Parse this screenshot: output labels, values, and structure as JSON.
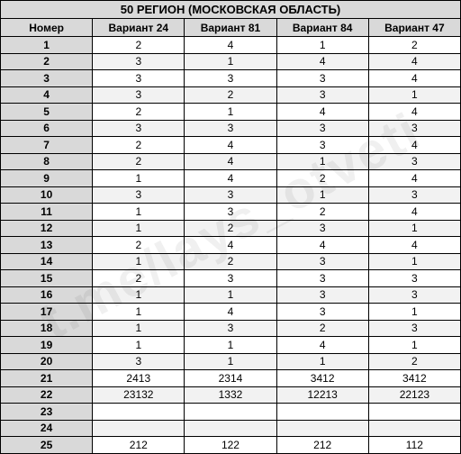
{
  "title": "50 РЕГИОН (МОСКОВСКАЯ ОБЛАСТЬ)",
  "watermark": "t.me/lays_otveti",
  "num_header": "Номер",
  "columns": [
    "Вариант 24",
    "Вариант 81",
    "Вариант 84",
    "Вариант 47"
  ],
  "rows": [
    {
      "n": "1",
      "v": [
        "2",
        "4",
        "1",
        "2"
      ]
    },
    {
      "n": "2",
      "v": [
        "3",
        "1",
        "4",
        "4"
      ]
    },
    {
      "n": "3",
      "v": [
        "3",
        "3",
        "3",
        "4"
      ]
    },
    {
      "n": "4",
      "v": [
        "3",
        "2",
        "3",
        "1"
      ]
    },
    {
      "n": "5",
      "v": [
        "2",
        "1",
        "4",
        "4"
      ]
    },
    {
      "n": "6",
      "v": [
        "3",
        "3",
        "3",
        "3"
      ]
    },
    {
      "n": "7",
      "v": [
        "2",
        "4",
        "3",
        "4"
      ]
    },
    {
      "n": "8",
      "v": [
        "2",
        "4",
        "1",
        "3"
      ]
    },
    {
      "n": "9",
      "v": [
        "1",
        "4",
        "2",
        "4"
      ]
    },
    {
      "n": "10",
      "v": [
        "3",
        "3",
        "1",
        "3"
      ]
    },
    {
      "n": "11",
      "v": [
        "1",
        "3",
        "2",
        "4"
      ]
    },
    {
      "n": "12",
      "v": [
        "1",
        "2",
        "3",
        "1"
      ]
    },
    {
      "n": "13",
      "v": [
        "2",
        "4",
        "4",
        "4"
      ]
    },
    {
      "n": "14",
      "v": [
        "1",
        "2",
        "3",
        "1"
      ]
    },
    {
      "n": "15",
      "v": [
        "2",
        "3",
        "3",
        "3"
      ]
    },
    {
      "n": "16",
      "v": [
        "1",
        "1",
        "3",
        "3"
      ]
    },
    {
      "n": "17",
      "v": [
        "1",
        "4",
        "3",
        "1"
      ]
    },
    {
      "n": "18",
      "v": [
        "1",
        "3",
        "2",
        "3"
      ]
    },
    {
      "n": "19",
      "v": [
        "1",
        "1",
        "4",
        "1"
      ]
    },
    {
      "n": "20",
      "v": [
        "3",
        "1",
        "1",
        "2"
      ]
    },
    {
      "n": "21",
      "v": [
        "2413",
        "2314",
        "3412",
        "3412"
      ]
    },
    {
      "n": "22",
      "v": [
        "23132",
        "1332",
        "12213",
        "22123"
      ]
    },
    {
      "n": "23",
      "v": [
        "",
        "",
        "",
        ""
      ]
    },
    {
      "n": "24",
      "v": [
        "",
        "",
        "",
        ""
      ]
    },
    {
      "n": "25",
      "v": [
        "212",
        "122",
        "212",
        "112"
      ]
    }
  ],
  "style": {
    "type": "table",
    "header_bg": "#d9d9d9",
    "row_alt_bg": "#f2f2f2",
    "row_bg": "#ffffff",
    "border_color": "#000000",
    "font_family": "Arial",
    "title_fontsize": 13,
    "header_fontsize": 12,
    "cell_fontsize": 12,
    "num_col_width": 56,
    "data_col_width": 114,
    "watermark_color": "rgba(0,0,0,0.06)",
    "watermark_fontsize": 58,
    "watermark_rotate": -28
  }
}
